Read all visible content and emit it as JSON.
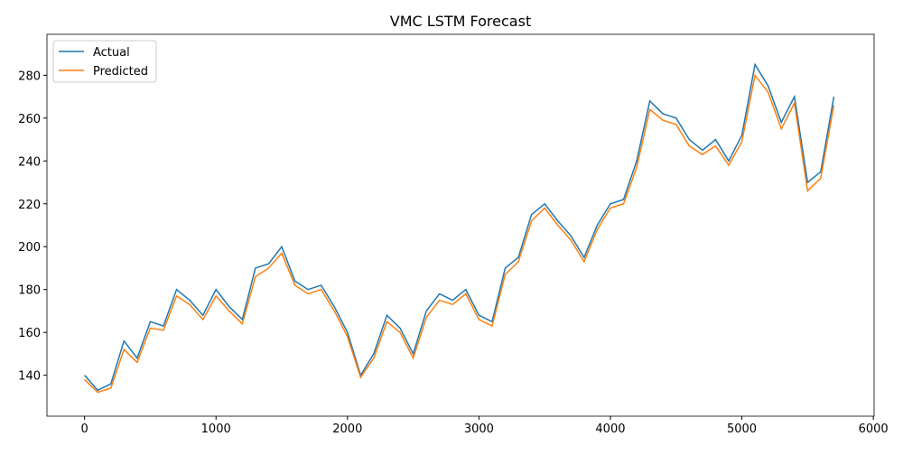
{
  "chart_data": {
    "type": "line",
    "title": "VMC LSTM Forecast",
    "x": [
      0,
      100,
      200,
      300,
      400,
      500,
      600,
      700,
      800,
      900,
      1000,
      1100,
      1200,
      1300,
      1400,
      1500,
      1600,
      1700,
      1800,
      1900,
      2000,
      2100,
      2200,
      2300,
      2400,
      2500,
      2600,
      2700,
      2800,
      2900,
      3000,
      3100,
      3200,
      3300,
      3400,
      3500,
      3600,
      3700,
      3800,
      3900,
      4000,
      4100,
      4200,
      4300,
      4400,
      4500,
      4600,
      4700,
      4800,
      4900,
      5000,
      5100,
      5200,
      5300,
      5400,
      5500,
      5600,
      5700
    ],
    "series": [
      {
        "name": "Actual",
        "color": "#1f77b4",
        "values": [
          140,
          133,
          136,
          156,
          148,
          165,
          163,
          180,
          175,
          168,
          180,
          172,
          166,
          190,
          192,
          200,
          184,
          180,
          182,
          172,
          160,
          140,
          150,
          168,
          162,
          150,
          170,
          178,
          175,
          180,
          168,
          165,
          190,
          195,
          215,
          220,
          212,
          205,
          195,
          210,
          220,
          222,
          240,
          268,
          262,
          260,
          250,
          245,
          250,
          240,
          252,
          285,
          275,
          258,
          270,
          230,
          235,
          270
        ]
      },
      {
        "name": "Predicted",
        "color": "#ff7f0e",
        "values": [
          138,
          132,
          134,
          152,
          146,
          162,
          161,
          177,
          173,
          166,
          177,
          170,
          164,
          186,
          190,
          197,
          182,
          178,
          180,
          170,
          158,
          139,
          148,
          165,
          160,
          148,
          167,
          175,
          173,
          178,
          166,
          163,
          187,
          193,
          212,
          218,
          210,
          203,
          193,
          208,
          218,
          220,
          237,
          264,
          259,
          257,
          247,
          243,
          247,
          238,
          249,
          280,
          272,
          255,
          267,
          226,
          232,
          266
        ]
      }
    ],
    "xlim": [
      -286,
      6006
    ],
    "ylim": [
      120.9,
      299.1
    ],
    "xticks": [
      0,
      1000,
      2000,
      3000,
      4000,
      5000,
      6000
    ],
    "yticks": [
      140,
      160,
      180,
      200,
      220,
      240,
      260,
      280
    ],
    "legend": "upper left"
  }
}
